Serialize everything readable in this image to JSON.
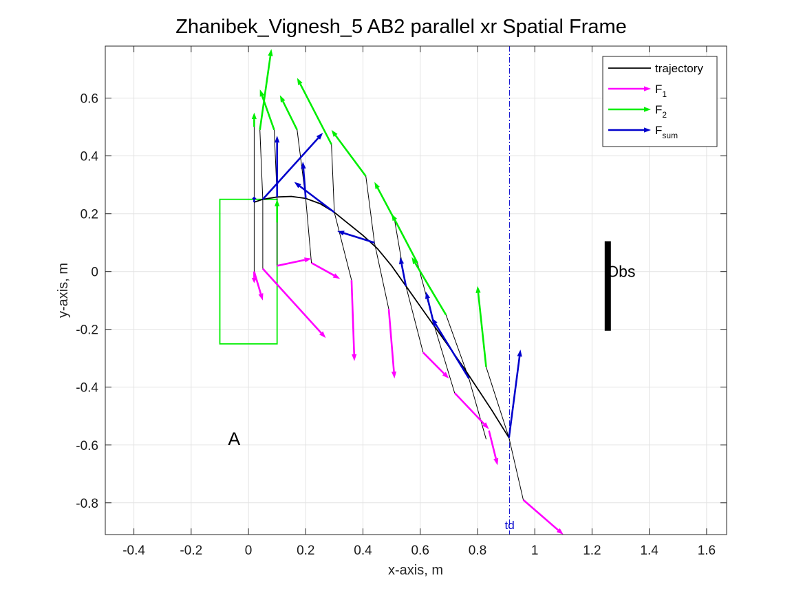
{
  "chart_data": {
    "type": "line",
    "title": "Zhanibek_Vignesh_5    AB2    parallel    xr  Spatial Frame",
    "xlabel": "x-axis, m",
    "ylabel": "y-axis, m",
    "xlim": [
      -0.5,
      1.67
    ],
    "ylim": [
      -0.91,
      0.78
    ],
    "xticks": [
      -0.4,
      -0.2,
      0,
      0.2,
      0.4,
      0.6,
      0.8,
      1,
      1.2,
      1.4,
      1.6
    ],
    "xtick_labels": [
      "-0.4",
      "-0.2",
      "0",
      "0.2",
      "0.4",
      "0.6",
      "0.8",
      "1",
      "1.2",
      "1.4",
      "1.6"
    ],
    "yticks": [
      -0.8,
      -0.6,
      -0.4,
      -0.2,
      0,
      0.2,
      0.4,
      0.6
    ],
    "ytick_labels": [
      "-0.8",
      "-0.6",
      "-0.4",
      "-0.2",
      "0",
      "0.2",
      "0.4",
      "0.6"
    ],
    "grid": true,
    "legend_position": "top-right",
    "legend": [
      {
        "label": "trajectory",
        "sub": "",
        "kind": "line",
        "color": "#000000"
      },
      {
        "label": "F",
        "sub": "1",
        "kind": "arrow",
        "color": "#ff00ff"
      },
      {
        "label": "F",
        "sub": "2",
        "kind": "arrow",
        "color": "#00ee00"
      },
      {
        "label": "F",
        "sub": "sum",
        "kind": "arrow",
        "color": "#0000cc"
      }
    ],
    "trajectory": {
      "name": "trajectory",
      "color": "#000000",
      "points": [
        [
          0.02,
          0.24
        ],
        [
          0.05,
          0.25
        ],
        [
          0.1,
          0.258
        ],
        [
          0.15,
          0.26
        ],
        [
          0.2,
          0.253
        ],
        [
          0.25,
          0.235
        ],
        [
          0.3,
          0.205
        ],
        [
          0.35,
          0.165
        ],
        [
          0.4,
          0.125
        ],
        [
          0.45,
          0.08
        ],
        [
          0.5,
          0.02
        ],
        [
          0.55,
          -0.05
        ],
        [
          0.6,
          -0.12
        ],
        [
          0.65,
          -0.19
        ],
        [
          0.7,
          -0.26
        ],
        [
          0.75,
          -0.33
        ],
        [
          0.8,
          -0.405
        ],
        [
          0.85,
          -0.48
        ],
        [
          0.91,
          -0.575
        ]
      ]
    },
    "links": {
      "name": "links",
      "color": "#000000",
      "segments": [
        [
          [
            0.02,
            0.24
          ],
          [
            0.02,
            0.5
          ]
        ],
        [
          [
            0.02,
            0.24
          ],
          [
            0.02,
            0.0
          ]
        ],
        [
          [
            0.05,
            0.25
          ],
          [
            0.04,
            0.49
          ]
        ],
        [
          [
            0.05,
            0.25
          ],
          [
            0.05,
            0.01
          ]
        ],
        [
          [
            0.1,
            0.258
          ],
          [
            0.09,
            0.49
          ]
        ],
        [
          [
            0.1,
            0.258
          ],
          [
            0.1,
            0.02
          ]
        ],
        [
          [
            0.2,
            0.253
          ],
          [
            0.17,
            0.49
          ]
        ],
        [
          [
            0.2,
            0.253
          ],
          [
            0.22,
            0.03
          ]
        ],
        [
          [
            0.3,
            0.205
          ],
          [
            0.29,
            0.44
          ]
        ],
        [
          [
            0.3,
            0.205
          ],
          [
            0.36,
            -0.03
          ]
        ],
        [
          [
            0.44,
            0.1
          ],
          [
            0.41,
            0.33
          ]
        ],
        [
          [
            0.44,
            0.1
          ],
          [
            0.49,
            -0.13
          ]
        ],
        [
          [
            0.55,
            -0.05
          ],
          [
            0.51,
            0.18
          ]
        ],
        [
          [
            0.55,
            -0.05
          ],
          [
            0.61,
            -0.28
          ]
        ],
        [
          [
            0.65,
            -0.19
          ],
          [
            0.59,
            0.03
          ]
        ],
        [
          [
            0.65,
            -0.19
          ],
          [
            0.72,
            -0.42
          ]
        ],
        [
          [
            0.77,
            -0.37
          ],
          [
            0.69,
            -0.15
          ]
        ],
        [
          [
            0.77,
            -0.37
          ],
          [
            0.83,
            -0.58
          ]
        ],
        [
          [
            0.91,
            -0.575
          ],
          [
            0.83,
            -0.33
          ]
        ],
        [
          [
            0.91,
            -0.575
          ],
          [
            0.96,
            -0.79
          ]
        ]
      ]
    },
    "series": [
      {
        "name": "F_1",
        "color": "#ff00ff",
        "arrows": [
          [
            [
              0.02,
              0.0
            ],
            [
              0.02,
              -0.04
            ]
          ],
          [
            [
              0.02,
              0.0
            ],
            [
              0.05,
              -0.1
            ]
          ],
          [
            [
              0.05,
              0.01
            ],
            [
              0.27,
              -0.23
            ]
          ],
          [
            [
              0.1,
              0.02
            ],
            [
              0.22,
              0.045
            ]
          ],
          [
            [
              0.22,
              0.03
            ],
            [
              0.32,
              -0.025
            ]
          ],
          [
            [
              0.36,
              -0.03
            ],
            [
              0.37,
              -0.31
            ]
          ],
          [
            [
              0.49,
              -0.13
            ],
            [
              0.51,
              -0.37
            ]
          ],
          [
            [
              0.61,
              -0.28
            ],
            [
              0.7,
              -0.37
            ]
          ],
          [
            [
              0.72,
              -0.42
            ],
            [
              0.84,
              -0.545
            ]
          ],
          [
            [
              0.84,
              -0.55
            ],
            [
              0.87,
              -0.67
            ]
          ],
          [
            [
              0.96,
              -0.79
            ],
            [
              1.1,
              -0.91
            ]
          ]
        ]
      },
      {
        "name": "F_2",
        "color": "#00ee00",
        "arrows": [
          [
            [
              0.02,
              0.5
            ],
            [
              0.02,
              0.55
            ]
          ],
          [
            [
              0.04,
              0.49
            ],
            [
              0.08,
              0.77
            ]
          ],
          [
            [
              0.09,
              0.49
            ],
            [
              0.04,
              0.63
            ]
          ],
          [
            [
              0.17,
              0.49
            ],
            [
              0.11,
              0.61
            ]
          ],
          [
            [
              0.29,
              0.44
            ],
            [
              0.17,
              0.67
            ]
          ],
          [
            [
              0.41,
              0.33
            ],
            [
              0.29,
              0.49
            ]
          ],
          [
            [
              0.51,
              0.18
            ],
            [
              0.44,
              0.31
            ]
          ],
          [
            [
              0.59,
              0.03
            ],
            [
              0.5,
              0.2
            ]
          ],
          [
            [
              0.69,
              -0.15
            ],
            [
              0.57,
              0.05
            ]
          ],
          [
            [
              0.83,
              -0.33
            ],
            [
              0.8,
              -0.05
            ]
          ],
          [
            [
              0.1,
              0.17
            ],
            [
              0.1,
              0.25
            ]
          ]
        ]
      },
      {
        "name": "F_sum",
        "color": "#0000cc",
        "arrows": [
          [
            [
              0.02,
              0.24
            ],
            [
              0.02,
              0.26
            ]
          ],
          [
            [
              0.05,
              0.25
            ],
            [
              0.26,
              0.48
            ]
          ],
          [
            [
              0.1,
              0.258
            ],
            [
              0.1,
              0.47
            ]
          ],
          [
            [
              0.2,
              0.253
            ],
            [
              0.19,
              0.38
            ]
          ],
          [
            [
              0.3,
              0.205
            ],
            [
              0.16,
              0.31
            ]
          ],
          [
            [
              0.44,
              0.1
            ],
            [
              0.31,
              0.14
            ]
          ],
          [
            [
              0.55,
              -0.05
            ],
            [
              0.53,
              0.05
            ]
          ],
          [
            [
              0.65,
              -0.19
            ],
            [
              0.62,
              -0.07
            ]
          ],
          [
            [
              0.77,
              -0.37
            ],
            [
              0.64,
              -0.16
            ]
          ],
          [
            [
              0.91,
              -0.575
            ],
            [
              0.95,
              -0.27
            ]
          ]
        ]
      }
    ],
    "region_box": {
      "x": [
        -0.1,
        0.1
      ],
      "y": [
        -0.25,
        0.25
      ],
      "color": "#00ee00"
    },
    "obstacle": {
      "x": 1.255,
      "y": [
        -0.205,
        0.105
      ],
      "label": "Obs",
      "color": "#000000"
    },
    "td_line": {
      "x": 0.912,
      "label": "td",
      "color": "#0000cc"
    },
    "annotations": [
      {
        "text": "A",
        "x": -0.05,
        "y": -0.6
      }
    ]
  }
}
